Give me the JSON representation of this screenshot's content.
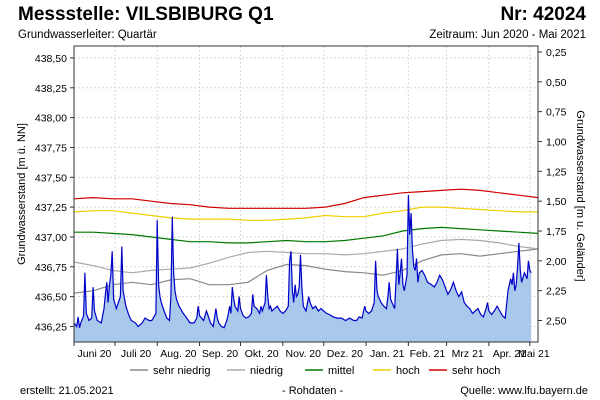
{
  "header": {
    "station_label": "Messstelle: VILSBIBURG Q1",
    "number_label": "Nr: 42024",
    "aquifer": "Grundwasserleiter: Quartär",
    "period": "Zeitraum: Jun 2020 - Mai 2021"
  },
  "footer": {
    "created": "erstellt:  21.05.2021",
    "raw_data": "- Rohdaten -",
    "source": "Quelle:  www.lfu.bayern.de"
  },
  "colors": {
    "water_fill": "#a8c8ec",
    "water_line": "#0000c8",
    "sehr_niedrig": "#888888",
    "niedrig": "#aaaaaa",
    "mittel": "#007800",
    "hoch": "#f0d000",
    "sehr_hoch": "#d00000",
    "grid": "#d8d8d8"
  },
  "chart_data": {
    "type": "area",
    "ylabel_left": "Grundwasserstand [m ü. NN]",
    "ylabel_right": "Grundwasserstand [m u. Geländer]",
    "ylim_left": [
      436.12,
      438.6
    ],
    "ylim_right": [
      2.68,
      0.2
    ],
    "yticks_left": [
      "438,50",
      "438,25",
      "438,00",
      "437,75",
      "437,50",
      "437,25",
      "437,00",
      "436,75",
      "436,50",
      "436,25"
    ],
    "yticks_right": [
      "0,25",
      "0,50",
      "0,75",
      "1,00",
      "1,25",
      "1,50",
      "1,75",
      "2,00",
      "2,25",
      "2,50"
    ],
    "xticks": [
      "Juni 20",
      "Juli 20",
      "Aug. 20",
      "Sep. 20",
      "Okt. 20",
      "Nov. 20",
      "Dez. 20",
      "Jan. 21",
      "Feb. 21",
      "Mrz 21",
      "Apr. 21",
      "Mai 21"
    ],
    "grid": true,
    "legend_position": "bottom",
    "series": [
      {
        "name": "sehr niedrig",
        "values": [
          436.53,
          436.55,
          436.6,
          436.62,
          436.6,
          436.64,
          436.65,
          436.6,
          436.6,
          436.62,
          436.72,
          436.77,
          436.76,
          436.73,
          436.71,
          436.7,
          436.68,
          436.72,
          436.8,
          436.85,
          436.86,
          436.84,
          436.86,
          436.88,
          436.9
        ]
      },
      {
        "name": "niedrig",
        "values": [
          436.79,
          436.76,
          436.72,
          436.7,
          436.72,
          436.73,
          436.74,
          436.78,
          436.83,
          436.87,
          436.88,
          436.87,
          436.86,
          436.86,
          436.85,
          436.86,
          436.88,
          436.9,
          436.94,
          436.97,
          436.98,
          436.97,
          436.95,
          436.92,
          436.9
        ]
      },
      {
        "name": "mittel",
        "values": [
          437.04,
          437.04,
          437.03,
          437.02,
          437.0,
          436.98,
          436.96,
          436.96,
          436.95,
          436.95,
          436.96,
          436.97,
          436.96,
          436.96,
          436.97,
          436.99,
          437.01,
          437.05,
          437.07,
          437.08,
          437.07,
          437.06,
          437.05,
          437.04,
          437.03
        ]
      },
      {
        "name": "hoch",
        "values": [
          437.21,
          437.22,
          437.22,
          437.2,
          437.18,
          437.16,
          437.15,
          437.15,
          437.15,
          437.14,
          437.14,
          437.15,
          437.16,
          437.18,
          437.17,
          437.17,
          437.2,
          437.22,
          437.25,
          437.25,
          437.24,
          437.23,
          437.22,
          437.21,
          437.21
        ]
      },
      {
        "name": "sehr hoch",
        "values": [
          437.32,
          437.33,
          437.32,
          437.32,
          437.3,
          437.28,
          437.27,
          437.25,
          437.24,
          437.24,
          437.24,
          437.24,
          437.24,
          437.25,
          437.28,
          437.33,
          437.35,
          437.37,
          437.38,
          437.39,
          437.4,
          437.39,
          437.37,
          437.35,
          437.33
        ]
      },
      {
        "name": "Grundwasserstand",
        "points": [
          [
            0,
            436.28
          ],
          [
            2,
            436.25
          ],
          [
            3,
            436.33
          ],
          [
            4,
            436.24
          ],
          [
            5,
            436.28
          ],
          [
            7,
            436.34
          ],
          [
            8,
            436.7
          ],
          [
            9,
            436.36
          ],
          [
            11,
            436.3
          ],
          [
            13,
            436.32
          ],
          [
            14,
            436.58
          ],
          [
            15,
            436.38
          ],
          [
            17,
            436.3
          ],
          [
            20,
            436.28
          ],
          [
            22,
            436.4
          ],
          [
            23,
            436.52
          ],
          [
            24,
            436.62
          ],
          [
            25,
            436.45
          ],
          [
            26,
            436.6
          ],
          [
            27,
            436.68
          ],
          [
            28,
            436.88
          ],
          [
            29,
            436.48
          ],
          [
            31,
            436.4
          ],
          [
            34,
            436.5
          ],
          [
            35,
            436.92
          ],
          [
            36,
            436.55
          ],
          [
            38,
            436.42
          ],
          [
            40,
            436.35
          ],
          [
            42,
            436.3
          ],
          [
            45,
            436.28
          ],
          [
            47,
            436.25
          ],
          [
            50,
            436.28
          ],
          [
            52,
            436.32
          ],
          [
            55,
            436.3
          ],
          [
            57,
            436.3
          ],
          [
            60,
            436.36
          ],
          [
            61,
            437.14
          ],
          [
            62,
            436.6
          ],
          [
            63,
            436.5
          ],
          [
            64,
            436.45
          ],
          [
            66,
            436.38
          ],
          [
            68,
            436.32
          ],
          [
            70,
            436.3
          ],
          [
            71,
            436.5
          ],
          [
            72,
            437.17
          ],
          [
            73,
            436.7
          ],
          [
            74,
            436.55
          ],
          [
            75,
            436.48
          ],
          [
            77,
            436.42
          ],
          [
            80,
            436.36
          ],
          [
            82,
            436.33
          ],
          [
            85,
            436.28
          ],
          [
            88,
            436.28
          ],
          [
            90,
            436.32
          ],
          [
            91,
            436.42
          ],
          [
            92,
            436.34
          ],
          [
            95,
            436.3
          ],
          [
            97,
            436.38
          ],
          [
            98,
            436.35
          ],
          [
            100,
            436.28
          ],
          [
            102,
            436.25
          ],
          [
            104,
            436.4
          ],
          [
            105,
            436.32
          ],
          [
            106,
            436.28
          ],
          [
            108,
            436.25
          ],
          [
            110,
            436.24
          ],
          [
            112,
            436.3
          ],
          [
            113,
            436.35
          ],
          [
            114,
            436.42
          ],
          [
            115,
            436.36
          ],
          [
            116,
            436.58
          ],
          [
            117,
            436.48
          ],
          [
            118,
            436.42
          ],
          [
            120,
            436.38
          ],
          [
            121,
            436.5
          ],
          [
            122,
            436.4
          ],
          [
            124,
            436.34
          ],
          [
            126,
            436.32
          ],
          [
            128,
            436.33
          ],
          [
            130,
            436.36
          ],
          [
            131,
            436.52
          ],
          [
            132,
            436.42
          ],
          [
            134,
            436.4
          ],
          [
            136,
            436.36
          ],
          [
            137,
            436.42
          ],
          [
            138,
            436.38
          ],
          [
            140,
            436.45
          ],
          [
            141,
            436.68
          ],
          [
            142,
            436.5
          ],
          [
            143,
            436.4
          ],
          [
            144,
            436.42
          ],
          [
            145,
            436.38
          ],
          [
            147,
            436.4
          ],
          [
            149,
            436.42
          ],
          [
            151,
            436.38
          ],
          [
            153,
            436.36
          ],
          [
            155,
            436.38
          ],
          [
            157,
            436.42
          ],
          [
            158,
            436.8
          ],
          [
            159,
            436.88
          ],
          [
            160,
            436.55
          ],
          [
            161,
            436.45
          ],
          [
            162,
            436.6
          ],
          [
            163,
            436.5
          ],
          [
            164,
            436.52
          ],
          [
            165,
            436.58
          ],
          [
            166,
            436.85
          ],
          [
            167,
            436.58
          ],
          [
            168,
            436.42
          ],
          [
            170,
            436.38
          ],
          [
            172,
            436.5
          ],
          [
            173,
            436.45
          ],
          [
            175,
            436.4
          ],
          [
            177,
            436.42
          ],
          [
            179,
            436.38
          ],
          [
            181,
            436.4
          ],
          [
            183,
            436.38
          ],
          [
            185,
            436.36
          ],
          [
            187,
            436.35
          ],
          [
            190,
            436.33
          ],
          [
            193,
            436.32
          ],
          [
            196,
            436.32
          ],
          [
            199,
            436.3
          ],
          [
            202,
            436.32
          ],
          [
            205,
            436.3
          ],
          [
            207,
            436.3
          ],
          [
            209,
            436.33
          ],
          [
            211,
            436.32
          ],
          [
            213,
            436.42
          ],
          [
            214,
            436.38
          ],
          [
            216,
            436.36
          ],
          [
            218,
            436.38
          ],
          [
            220,
            436.45
          ],
          [
            221,
            436.8
          ],
          [
            222,
            436.55
          ],
          [
            223,
            436.5
          ],
          [
            225,
            436.45
          ],
          [
            227,
            436.42
          ],
          [
            229,
            436.4
          ],
          [
            230,
            436.5
          ],
          [
            231,
            436.62
          ],
          [
            232,
            436.48
          ],
          [
            233,
            436.45
          ],
          [
            235,
            436.4
          ],
          [
            236,
            436.65
          ],
          [
            237,
            436.9
          ],
          [
            238,
            436.6
          ],
          [
            239,
            436.7
          ],
          [
            240,
            436.82
          ],
          [
            241,
            436.6
          ],
          [
            242,
            436.55
          ],
          [
            244,
            436.68
          ],
          [
            245,
            437.35
          ],
          [
            246,
            437.02
          ],
          [
            247,
            437.2
          ],
          [
            248,
            436.9
          ],
          [
            249,
            436.75
          ],
          [
            250,
            436.72
          ],
          [
            251,
            436.82
          ],
          [
            252,
            436.62
          ],
          [
            253,
            436.7
          ],
          [
            255,
            436.72
          ],
          [
            257,
            436.68
          ],
          [
            259,
            436.62
          ],
          [
            262,
            436.6
          ],
          [
            264,
            436.58
          ],
          [
            266,
            436.62
          ],
          [
            268,
            436.68
          ],
          [
            270,
            436.64
          ],
          [
            272,
            436.58
          ],
          [
            274,
            436.52
          ],
          [
            276,
            436.56
          ],
          [
            278,
            436.62
          ],
          [
            280,
            436.55
          ],
          [
            282,
            436.5
          ],
          [
            284,
            436.54
          ],
          [
            286,
            436.45
          ],
          [
            288,
            436.42
          ],
          [
            290,
            436.4
          ],
          [
            292,
            436.36
          ],
          [
            294,
            436.38
          ],
          [
            296,
            436.4
          ],
          [
            298,
            436.35
          ],
          [
            300,
            436.33
          ],
          [
            302,
            436.4
          ],
          [
            303,
            436.45
          ],
          [
            304,
            436.38
          ],
          [
            306,
            436.35
          ],
          [
            308,
            436.38
          ],
          [
            310,
            436.42
          ],
          [
            312,
            436.38
          ],
          [
            314,
            436.34
          ],
          [
            316,
            436.32
          ],
          [
            318,
            436.55
          ],
          [
            320,
            436.65
          ],
          [
            321,
            436.6
          ],
          [
            322,
            436.7
          ],
          [
            323,
            436.55
          ],
          [
            324,
            436.6
          ],
          [
            325,
            436.74
          ],
          [
            326,
            436.95
          ],
          [
            327,
            436.72
          ],
          [
            328,
            436.62
          ],
          [
            330,
            436.7
          ],
          [
            332,
            436.65
          ],
          [
            333,
            436.8
          ],
          [
            334,
            436.72
          ],
          [
            335,
            436.7
          ]
        ]
      }
    ]
  }
}
